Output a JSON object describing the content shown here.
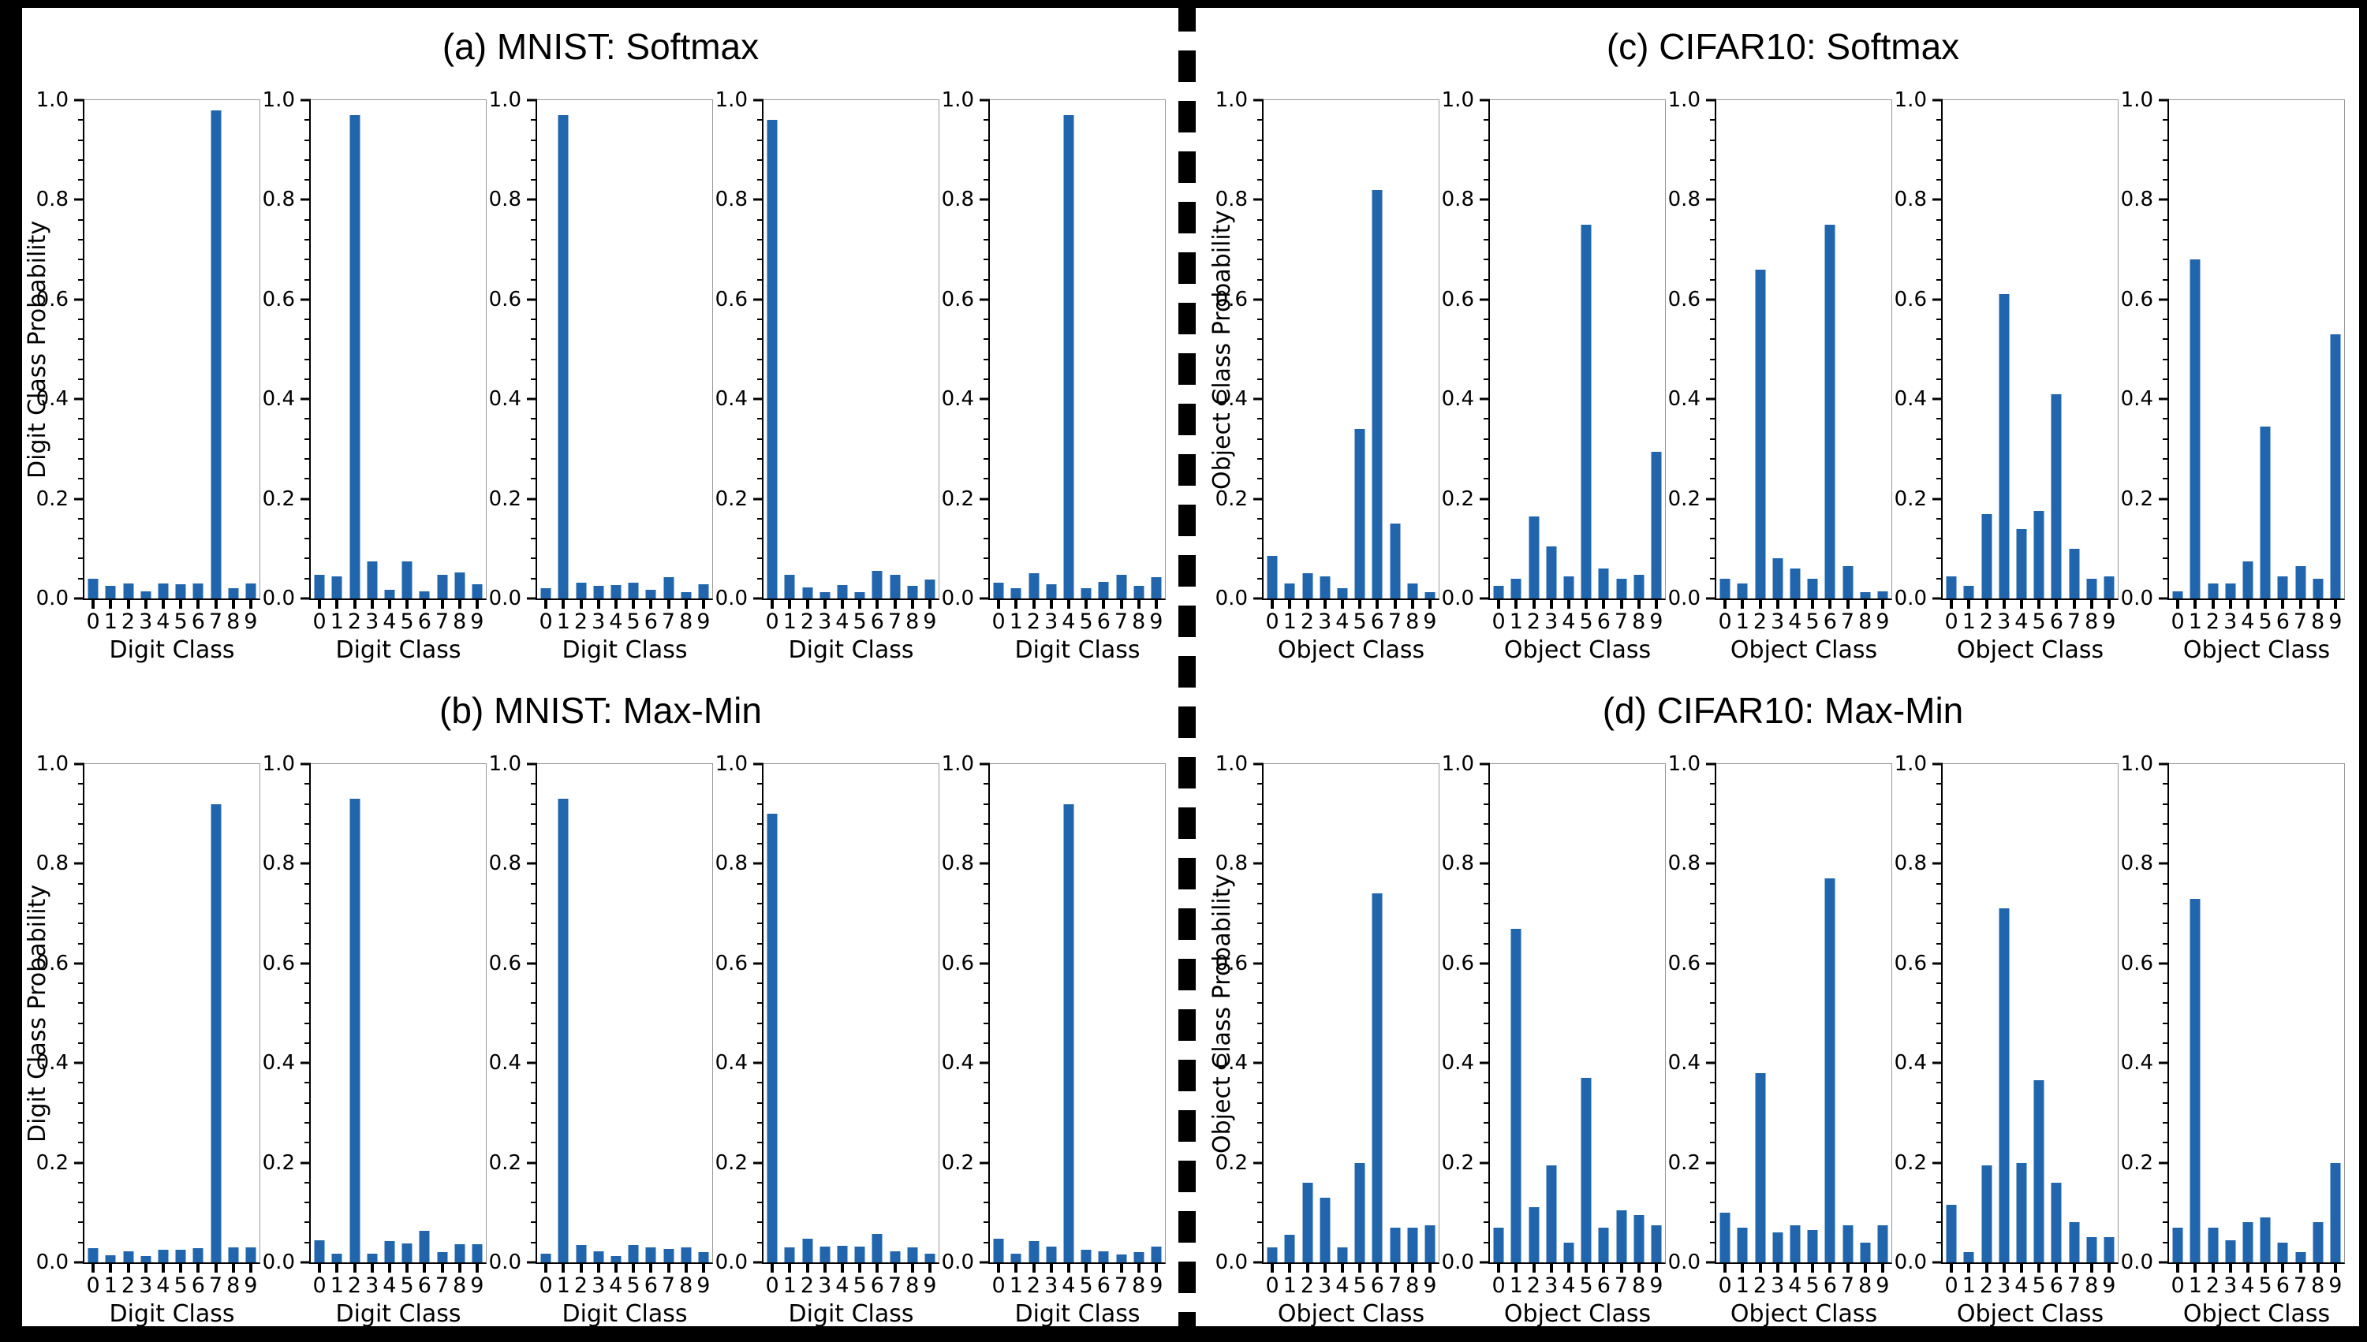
{
  "figure": {
    "background": "#000000",
    "canvas_background": "#ffffff",
    "bar_color": "#2166ac",
    "divider_style": "vertical-dashed-black-line"
  },
  "chart_data": [
    {
      "panel": "a",
      "type": "bar",
      "title": "(a) MNIST: Softmax",
      "xlabel": "Digit Class",
      "ylabel": "Digit Class Probability",
      "categories": [
        "0",
        "1",
        "2",
        "3",
        "4",
        "5",
        "6",
        "7",
        "8",
        "9"
      ],
      "ylim": [
        0.0,
        1.0
      ],
      "yticks": [
        "0.0",
        "0.2",
        "0.4",
        "0.6",
        "0.8",
        "1.0"
      ],
      "grid": false,
      "subplots": [
        {
          "values": [
            0.04,
            0.025,
            0.03,
            0.015,
            0.03,
            0.028,
            0.03,
            0.98,
            0.02,
            0.03
          ]
        },
        {
          "values": [
            0.048,
            0.045,
            0.97,
            0.075,
            0.018,
            0.075,
            0.015,
            0.047,
            0.053,
            0.028
          ]
        },
        {
          "values": [
            0.021,
            0.97,
            0.032,
            0.025,
            0.027,
            0.032,
            0.018,
            0.042,
            0.012,
            0.028
          ]
        },
        {
          "values": [
            0.96,
            0.048,
            0.022,
            0.013,
            0.027,
            0.013,
            0.055,
            0.048,
            0.025,
            0.038
          ]
        },
        {
          "values": [
            0.032,
            0.02,
            0.05,
            0.028,
            0.97,
            0.02,
            0.033,
            0.048,
            0.025,
            0.042
          ]
        }
      ]
    },
    {
      "panel": "b",
      "type": "bar",
      "title": "(b) MNIST: Max-Min",
      "xlabel": "Digit Class",
      "ylabel": "Digit Class Probability",
      "categories": [
        "0",
        "1",
        "2",
        "3",
        "4",
        "5",
        "6",
        "7",
        "8",
        "9"
      ],
      "ylim": [
        0.0,
        1.0
      ],
      "yticks": [
        "0.0",
        "0.2",
        "0.4",
        "0.6",
        "0.8",
        "1.0"
      ],
      "grid": false,
      "subplots": [
        {
          "values": [
            0.028,
            0.015,
            0.022,
            0.013,
            0.025,
            0.026,
            0.028,
            0.92,
            0.03,
            0.03
          ]
        },
        {
          "values": [
            0.045,
            0.018,
            0.93,
            0.018,
            0.042,
            0.038,
            0.063,
            0.02,
            0.037,
            0.037
          ]
        },
        {
          "values": [
            0.018,
            0.93,
            0.035,
            0.022,
            0.013,
            0.035,
            0.03,
            0.027,
            0.03,
            0.02
          ]
        },
        {
          "values": [
            0.9,
            0.03,
            0.047,
            0.031,
            0.033,
            0.032,
            0.057,
            0.022,
            0.03,
            0.018
          ]
        },
        {
          "values": [
            0.048,
            0.017,
            0.042,
            0.032,
            0.92,
            0.025,
            0.022,
            0.016,
            0.02,
            0.032
          ]
        }
      ]
    },
    {
      "panel": "c",
      "type": "bar",
      "title": "(c) CIFAR10: Softmax",
      "xlabel": "Object Class",
      "ylabel": "Object Class Probability",
      "categories": [
        "0",
        "1",
        "2",
        "3",
        "4",
        "5",
        "6",
        "7",
        "8",
        "9"
      ],
      "ylim": [
        0.0,
        1.0
      ],
      "yticks": [
        "0.0",
        "0.2",
        "0.4",
        "0.6",
        "0.8",
        "1.0"
      ],
      "grid": false,
      "subplots": [
        {
          "values": [
            0.085,
            0.03,
            0.05,
            0.045,
            0.02,
            0.34,
            0.82,
            0.15,
            0.03,
            0.013
          ]
        },
        {
          "values": [
            0.025,
            0.04,
            0.165,
            0.105,
            0.045,
            0.75,
            0.06,
            0.04,
            0.048,
            0.295
          ]
        },
        {
          "values": [
            0.04,
            0.03,
            0.66,
            0.08,
            0.06,
            0.04,
            0.75,
            0.065,
            0.012,
            0.015
          ]
        },
        {
          "values": [
            0.045,
            0.025,
            0.17,
            0.61,
            0.14,
            0.175,
            0.41,
            0.1,
            0.04,
            0.045
          ]
        },
        {
          "values": [
            0.015,
            0.68,
            0.03,
            0.03,
            0.075,
            0.345,
            0.045,
            0.065,
            0.04,
            0.53
          ]
        }
      ]
    },
    {
      "panel": "d",
      "type": "bar",
      "title": "(d) CIFAR10: Max-Min",
      "xlabel": "Object Class",
      "ylabel": "Object Class Probability",
      "categories": [
        "0",
        "1",
        "2",
        "3",
        "4",
        "5",
        "6",
        "7",
        "8",
        "9"
      ],
      "ylim": [
        0.0,
        1.0
      ],
      "yticks": [
        "0.0",
        "0.2",
        "0.4",
        "0.6",
        "0.8",
        "1.0"
      ],
      "grid": false,
      "subplots": [
        {
          "values": [
            0.03,
            0.055,
            0.16,
            0.13,
            0.03,
            0.2,
            0.74,
            0.07,
            0.07,
            0.075
          ]
        },
        {
          "values": [
            0.07,
            0.67,
            0.11,
            0.195,
            0.04,
            0.37,
            0.07,
            0.105,
            0.095,
            0.075
          ]
        },
        {
          "values": [
            0.1,
            0.07,
            0.38,
            0.06,
            0.075,
            0.065,
            0.77,
            0.075,
            0.04,
            0.075
          ]
        },
        {
          "values": [
            0.115,
            0.02,
            0.195,
            0.71,
            0.2,
            0.365,
            0.16,
            0.08,
            0.05,
            0.05
          ]
        },
        {
          "values": [
            0.07,
            0.73,
            0.07,
            0.045,
            0.08,
            0.09,
            0.04,
            0.02,
            0.08,
            0.2
          ]
        }
      ]
    }
  ]
}
